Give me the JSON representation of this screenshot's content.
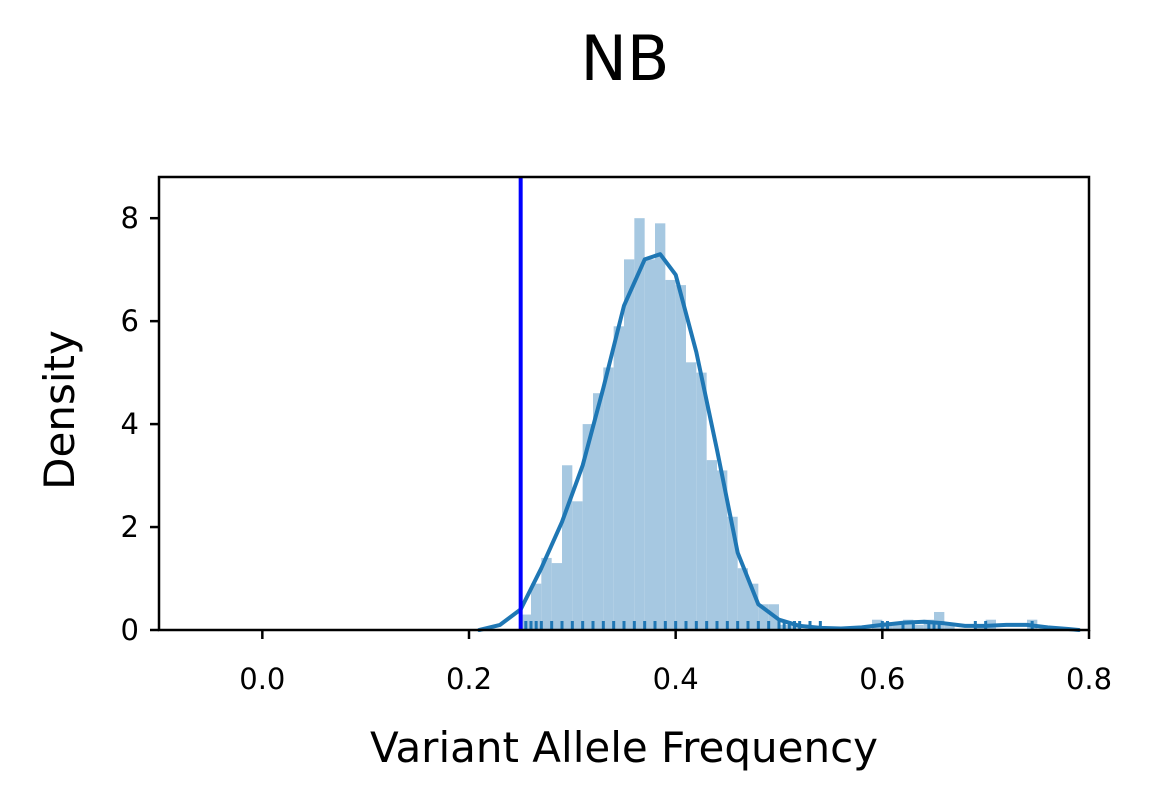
{
  "chart_data": {
    "type": "bar",
    "title": "NB",
    "xlabel": "Variant Allele Frequency",
    "ylabel": "Density",
    "xlim": [
      -0.1,
      0.8
    ],
    "ylim": [
      0,
      8.8
    ],
    "xticks": [
      0.0,
      0.2,
      0.4,
      0.6,
      0.8
    ],
    "xtick_labels": [
      "0.0",
      "0.2",
      "0.4",
      "0.6",
      "0.8"
    ],
    "yticks": [
      0,
      2,
      4,
      6,
      8
    ],
    "ytick_labels": [
      "0",
      "2",
      "4",
      "6",
      "8"
    ],
    "grid": false,
    "colors": {
      "histogram": "#a6c8e1",
      "kde": "#1f77b4",
      "rug": "#1f77b4",
      "threshold_line": "#0000ff"
    },
    "threshold_x": 0.25,
    "histogram": {
      "bin_width": 0.01,
      "bins": [
        {
          "x0": 0.25,
          "density": 0.3
        },
        {
          "x0": 0.26,
          "density": 0.9
        },
        {
          "x0": 0.27,
          "density": 1.4
        },
        {
          "x0": 0.28,
          "density": 1.3
        },
        {
          "x0": 0.29,
          "density": 3.2
        },
        {
          "x0": 0.3,
          "density": 2.5
        },
        {
          "x0": 0.31,
          "density": 4.0
        },
        {
          "x0": 0.32,
          "density": 4.6
        },
        {
          "x0": 0.33,
          "density": 5.1
        },
        {
          "x0": 0.34,
          "density": 5.9
        },
        {
          "x0": 0.35,
          "density": 7.2
        },
        {
          "x0": 0.36,
          "density": 8.0
        },
        {
          "x0": 0.37,
          "density": 7.2
        },
        {
          "x0": 0.38,
          "density": 7.9
        },
        {
          "x0": 0.39,
          "density": 6.8
        },
        {
          "x0": 0.4,
          "density": 6.7
        },
        {
          "x0": 0.41,
          "density": 5.2
        },
        {
          "x0": 0.42,
          "density": 5.0
        },
        {
          "x0": 0.43,
          "density": 3.3
        },
        {
          "x0": 0.44,
          "density": 3.1
        },
        {
          "x0": 0.45,
          "density": 2.2
        },
        {
          "x0": 0.46,
          "density": 1.2
        },
        {
          "x0": 0.47,
          "density": 0.9
        },
        {
          "x0": 0.48,
          "density": 0.5
        },
        {
          "x0": 0.49,
          "density": 0.5
        },
        {
          "x0": 0.5,
          "density": 0.1
        },
        {
          "x0": 0.51,
          "density": 0.1
        },
        {
          "x0": 0.53,
          "density": 0.05
        },
        {
          "x0": 0.59,
          "density": 0.2
        },
        {
          "x0": 0.6,
          "density": 0.15
        },
        {
          "x0": 0.61,
          "density": 0.1
        },
        {
          "x0": 0.62,
          "density": 0.2
        },
        {
          "x0": 0.63,
          "density": 0.1
        },
        {
          "x0": 0.64,
          "density": 0.2
        },
        {
          "x0": 0.65,
          "density": 0.35
        },
        {
          "x0": 0.66,
          "density": 0.1
        },
        {
          "x0": 0.69,
          "density": 0.1
        },
        {
          "x0": 0.7,
          "density": 0.2
        },
        {
          "x0": 0.74,
          "density": 0.2
        }
      ]
    },
    "kde": {
      "x": [
        0.21,
        0.23,
        0.25,
        0.27,
        0.29,
        0.31,
        0.33,
        0.35,
        0.37,
        0.385,
        0.4,
        0.42,
        0.44,
        0.46,
        0.48,
        0.5,
        0.52,
        0.54,
        0.56,
        0.58,
        0.6,
        0.62,
        0.64,
        0.66,
        0.68,
        0.7,
        0.72,
        0.74,
        0.76,
        0.78,
        0.79
      ],
      "y": [
        0.0,
        0.1,
        0.4,
        1.2,
        2.1,
        3.2,
        4.7,
        6.3,
        7.2,
        7.3,
        6.9,
        5.4,
        3.5,
        1.5,
        0.5,
        0.2,
        0.08,
        0.04,
        0.03,
        0.05,
        0.1,
        0.14,
        0.16,
        0.13,
        0.08,
        0.08,
        0.1,
        0.1,
        0.05,
        0.02,
        0.0
      ]
    },
    "rug": [
      0.255,
      0.26,
      0.265,
      0.27,
      0.28,
      0.29,
      0.3,
      0.31,
      0.32,
      0.33,
      0.34,
      0.35,
      0.36,
      0.37,
      0.38,
      0.39,
      0.4,
      0.41,
      0.42,
      0.43,
      0.44,
      0.45,
      0.46,
      0.47,
      0.48,
      0.49,
      0.5,
      0.505,
      0.51,
      0.515,
      0.52,
      0.53,
      0.54,
      0.6,
      0.605,
      0.62,
      0.63,
      0.645,
      0.65,
      0.655,
      0.69,
      0.7,
      0.745
    ]
  }
}
